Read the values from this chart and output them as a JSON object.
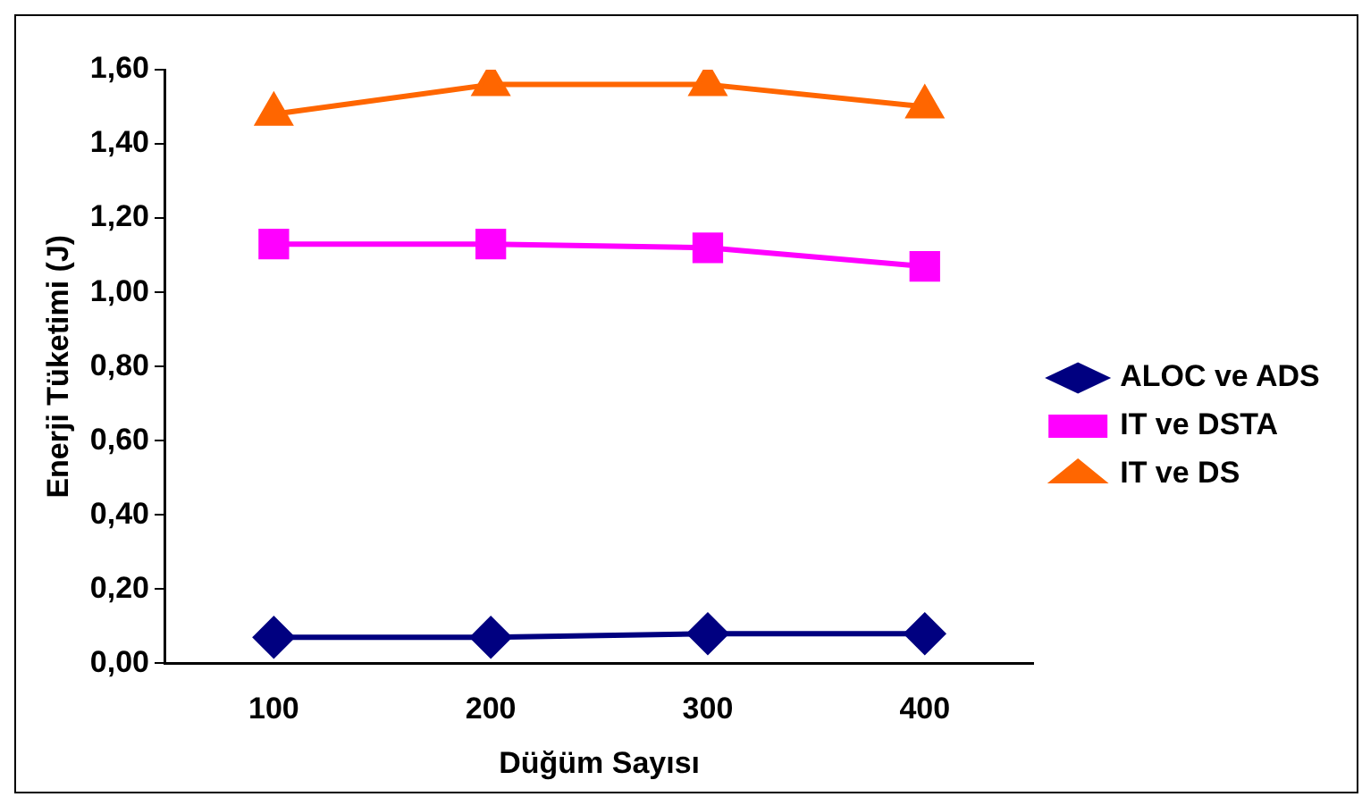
{
  "chart_data": {
    "type": "line",
    "xlabel": "Düğüm Sayısı",
    "ylabel": "Enerji Tüketimi (J)",
    "categories": [
      "100",
      "200",
      "300",
      "400"
    ],
    "series": [
      {
        "name": "ALOC ve ADS",
        "color": "#000080",
        "marker": "diamond",
        "values": [
          0.07,
          0.07,
          0.08,
          0.08
        ]
      },
      {
        "name": "IT ve DSTA",
        "color": "#ff00ff",
        "marker": "square",
        "values": [
          1.13,
          1.13,
          1.12,
          1.07
        ]
      },
      {
        "name": "IT ve DS",
        "color": "#ff6600",
        "marker": "triangle",
        "values": [
          1.48,
          1.56,
          1.56,
          1.5
        ]
      }
    ],
    "ylim": [
      0,
      1.6
    ],
    "yticks": [
      {
        "value": 0,
        "label": "0,00"
      },
      {
        "value": 0.2,
        "label": "0,20"
      },
      {
        "value": 0.4,
        "label": "0,40"
      },
      {
        "value": 0.6,
        "label": "0,60"
      },
      {
        "value": 0.8,
        "label": "0,80"
      },
      {
        "value": 1,
        "label": "1,00"
      },
      {
        "value": 1.2,
        "label": "1,20"
      },
      {
        "value": 1.4,
        "label": "1,40"
      },
      {
        "value": 1.6,
        "label": "1,60"
      }
    ],
    "grid": false,
    "legend": "right",
    "line_style": "solid"
  }
}
